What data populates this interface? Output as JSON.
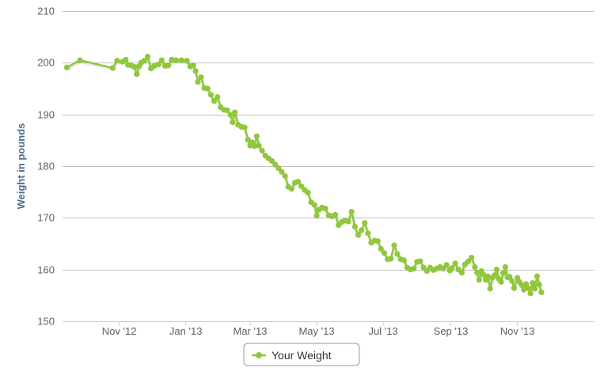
{
  "chart_data": {
    "type": "line",
    "title": "",
    "xlabel": "",
    "ylabel": "Weight in pounds",
    "ylim": [
      150,
      210
    ],
    "yticks": [
      150,
      160,
      170,
      180,
      190,
      200,
      210
    ],
    "xlim": [
      "2012-09-10",
      "2014-01-10"
    ],
    "xticks": [
      {
        "date": "2012-11-01",
        "label": "Nov '12"
      },
      {
        "date": "2013-01-01",
        "label": "Jan '13"
      },
      {
        "date": "2013-03-01",
        "label": "Mar '13"
      },
      {
        "date": "2013-05-01",
        "label": "May '13"
      },
      {
        "date": "2013-07-01",
        "label": "Jul '13"
      },
      {
        "date": "2013-09-01",
        "label": "Sep '13"
      },
      {
        "date": "2013-11-01",
        "label": "Nov '13"
      }
    ],
    "grid": true,
    "legend_position": "bottom-center",
    "series": [
      {
        "name": "Your Weight",
        "color": "#90c73c",
        "points": [
          [
            "2012-09-14",
            199.1
          ],
          [
            "2012-09-26",
            200.5
          ],
          [
            "2012-10-26",
            199.0
          ],
          [
            "2012-10-30",
            200.4
          ],
          [
            "2012-11-04",
            200.2
          ],
          [
            "2012-11-07",
            200.6
          ],
          [
            "2012-11-09",
            199.6
          ],
          [
            "2012-11-12",
            199.5
          ],
          [
            "2012-11-15",
            199.2
          ],
          [
            "2012-11-17",
            197.8
          ],
          [
            "2012-11-19",
            199.3
          ],
          [
            "2012-11-21",
            200.0
          ],
          [
            "2012-11-24",
            200.4
          ],
          [
            "2012-11-27",
            201.2
          ],
          [
            "2012-11-30",
            198.9
          ],
          [
            "2012-12-03",
            199.4
          ],
          [
            "2012-12-07",
            199.7
          ],
          [
            "2012-12-10",
            200.5
          ],
          [
            "2012-12-13",
            199.4
          ],
          [
            "2012-12-16",
            199.5
          ],
          [
            "2012-12-19",
            200.6
          ],
          [
            "2012-12-23",
            200.5
          ],
          [
            "2012-12-28",
            200.5
          ],
          [
            "2013-01-02",
            200.4
          ],
          [
            "2013-01-05",
            199.3
          ],
          [
            "2013-01-08",
            199.5
          ],
          [
            "2013-01-10",
            198.4
          ],
          [
            "2013-01-12",
            196.3
          ],
          [
            "2013-01-15",
            197.2
          ],
          [
            "2013-01-18",
            195.1
          ],
          [
            "2013-01-21",
            195.0
          ],
          [
            "2013-01-24",
            193.8
          ],
          [
            "2013-01-27",
            192.6
          ],
          [
            "2013-01-30",
            193.4
          ],
          [
            "2013-02-02",
            191.4
          ],
          [
            "2013-02-05",
            190.9
          ],
          [
            "2013-02-08",
            190.8
          ],
          [
            "2013-02-11",
            189.9
          ],
          [
            "2013-02-13",
            188.5
          ],
          [
            "2013-02-15",
            190.4
          ],
          [
            "2013-02-18",
            188.0
          ],
          [
            "2013-02-21",
            187.6
          ],
          [
            "2013-02-24",
            187.5
          ],
          [
            "2013-02-27",
            185.1
          ],
          [
            "2013-03-01",
            184.0
          ],
          [
            "2013-03-03",
            184.6
          ],
          [
            "2013-03-05",
            183.9
          ],
          [
            "2013-03-07",
            185.8
          ],
          [
            "2013-03-09",
            184.0
          ],
          [
            "2013-03-12",
            183.0
          ],
          [
            "2013-03-15",
            182.0
          ],
          [
            "2013-03-18",
            181.5
          ],
          [
            "2013-03-21",
            181.0
          ],
          [
            "2013-03-24",
            180.3
          ],
          [
            "2013-03-27",
            179.6
          ],
          [
            "2013-03-30",
            178.9
          ],
          [
            "2013-04-02",
            178.1
          ],
          [
            "2013-04-05",
            176.0
          ],
          [
            "2013-04-08",
            175.6
          ],
          [
            "2013-04-11",
            176.8
          ],
          [
            "2013-04-14",
            177.0
          ],
          [
            "2013-04-17",
            176.1
          ],
          [
            "2013-04-20",
            175.4
          ],
          [
            "2013-04-23",
            174.9
          ],
          [
            "2013-04-26",
            173.0
          ],
          [
            "2013-04-29",
            172.5
          ],
          [
            "2013-05-01",
            170.4
          ],
          [
            "2013-05-03",
            171.6
          ],
          [
            "2013-05-06",
            172.0
          ],
          [
            "2013-05-09",
            171.8
          ],
          [
            "2013-05-12",
            170.5
          ],
          [
            "2013-05-15",
            170.3
          ],
          [
            "2013-05-18",
            170.6
          ],
          [
            "2013-05-21",
            168.6
          ],
          [
            "2013-05-24",
            169.2
          ],
          [
            "2013-05-27",
            169.5
          ],
          [
            "2013-05-30",
            169.3
          ],
          [
            "2013-06-02",
            171.2
          ],
          [
            "2013-06-05",
            168.3
          ],
          [
            "2013-06-08",
            166.7
          ],
          [
            "2013-06-11",
            167.6
          ],
          [
            "2013-06-14",
            169.0
          ],
          [
            "2013-06-17",
            167.0
          ],
          [
            "2013-06-20",
            165.2
          ],
          [
            "2013-06-23",
            165.6
          ],
          [
            "2013-06-26",
            165.5
          ],
          [
            "2013-06-29",
            164.0
          ],
          [
            "2013-07-02",
            163.2
          ],
          [
            "2013-07-05",
            162.0
          ],
          [
            "2013-07-08",
            162.1
          ],
          [
            "2013-07-11",
            164.7
          ],
          [
            "2013-07-14",
            163.0
          ],
          [
            "2013-07-17",
            162.0
          ],
          [
            "2013-07-20",
            161.8
          ],
          [
            "2013-07-23",
            160.4
          ],
          [
            "2013-07-26",
            160.0
          ],
          [
            "2013-07-29",
            160.2
          ],
          [
            "2013-08-01",
            161.5
          ],
          [
            "2013-08-04",
            161.6
          ],
          [
            "2013-08-07",
            160.4
          ],
          [
            "2013-08-10",
            159.7
          ],
          [
            "2013-08-13",
            160.4
          ],
          [
            "2013-08-16",
            159.9
          ],
          [
            "2013-08-19",
            160.2
          ],
          [
            "2013-08-22",
            160.5
          ],
          [
            "2013-08-25",
            160.2
          ],
          [
            "2013-08-28",
            160.9
          ],
          [
            "2013-08-31",
            159.8
          ],
          [
            "2013-09-02",
            160.3
          ],
          [
            "2013-09-05",
            161.2
          ],
          [
            "2013-09-08",
            160.0
          ],
          [
            "2013-09-11",
            159.4
          ],
          [
            "2013-09-14",
            161.0
          ],
          [
            "2013-09-17",
            161.6
          ],
          [
            "2013-09-20",
            162.3
          ],
          [
            "2013-09-23",
            160.5
          ],
          [
            "2013-09-25",
            159.4
          ],
          [
            "2013-09-27",
            158.0
          ],
          [
            "2013-09-29",
            159.7
          ],
          [
            "2013-10-01",
            159.0
          ],
          [
            "2013-10-03",
            158.0
          ],
          [
            "2013-10-05",
            158.7
          ],
          [
            "2013-10-07",
            156.3
          ],
          [
            "2013-10-09",
            158.4
          ],
          [
            "2013-10-11",
            158.9
          ],
          [
            "2013-10-13",
            160.0
          ],
          [
            "2013-10-15",
            158.2
          ],
          [
            "2013-10-17",
            157.6
          ],
          [
            "2013-10-19",
            159.3
          ],
          [
            "2013-10-21",
            160.5
          ],
          [
            "2013-10-23",
            158.5
          ],
          [
            "2013-10-25",
            158.6
          ],
          [
            "2013-10-27",
            157.8
          ],
          [
            "2013-10-29",
            156.4
          ],
          [
            "2013-11-01",
            158.4
          ],
          [
            "2013-11-03",
            157.6
          ],
          [
            "2013-11-05",
            157.0
          ],
          [
            "2013-11-07",
            156.1
          ],
          [
            "2013-11-09",
            157.2
          ],
          [
            "2013-11-11",
            156.4
          ],
          [
            "2013-11-13",
            155.4
          ],
          [
            "2013-11-15",
            157.4
          ],
          [
            "2013-11-17",
            156.3
          ],
          [
            "2013-11-19",
            158.7
          ],
          [
            "2013-11-21",
            157.1
          ],
          [
            "2013-11-23",
            155.6
          ]
        ]
      }
    ]
  }
}
